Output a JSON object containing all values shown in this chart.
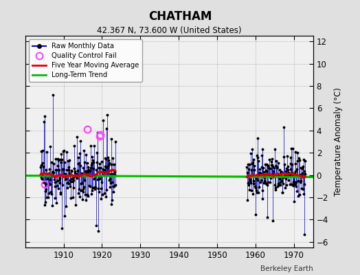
{
  "title": "CHATHAM",
  "subtitle": "42.367 N, 73.600 W (United States)",
  "ylabel": "Temperature Anomaly (°C)",
  "credit": "Berkeley Earth",
  "ylim": [
    -6.5,
    12.5
  ],
  "yticks": [
    -6,
    -4,
    -2,
    0,
    2,
    4,
    6,
    8,
    10,
    12
  ],
  "xlim": [
    1900,
    1975
  ],
  "xticks": [
    1910,
    1920,
    1930,
    1940,
    1950,
    1960,
    1970
  ],
  "fig_bg_color": "#e0e0e0",
  "plot_bg_color": "#f0f0f0",
  "raw_color": "#0000bb",
  "qc_color": "#ff44ff",
  "moving_avg_color": "#dd0000",
  "trend_color": "#00bb00",
  "seg1_start": 1904.0,
  "seg1_end": 1923.5,
  "seg2_start": 1957.7,
  "seg2_end": 1973.0
}
